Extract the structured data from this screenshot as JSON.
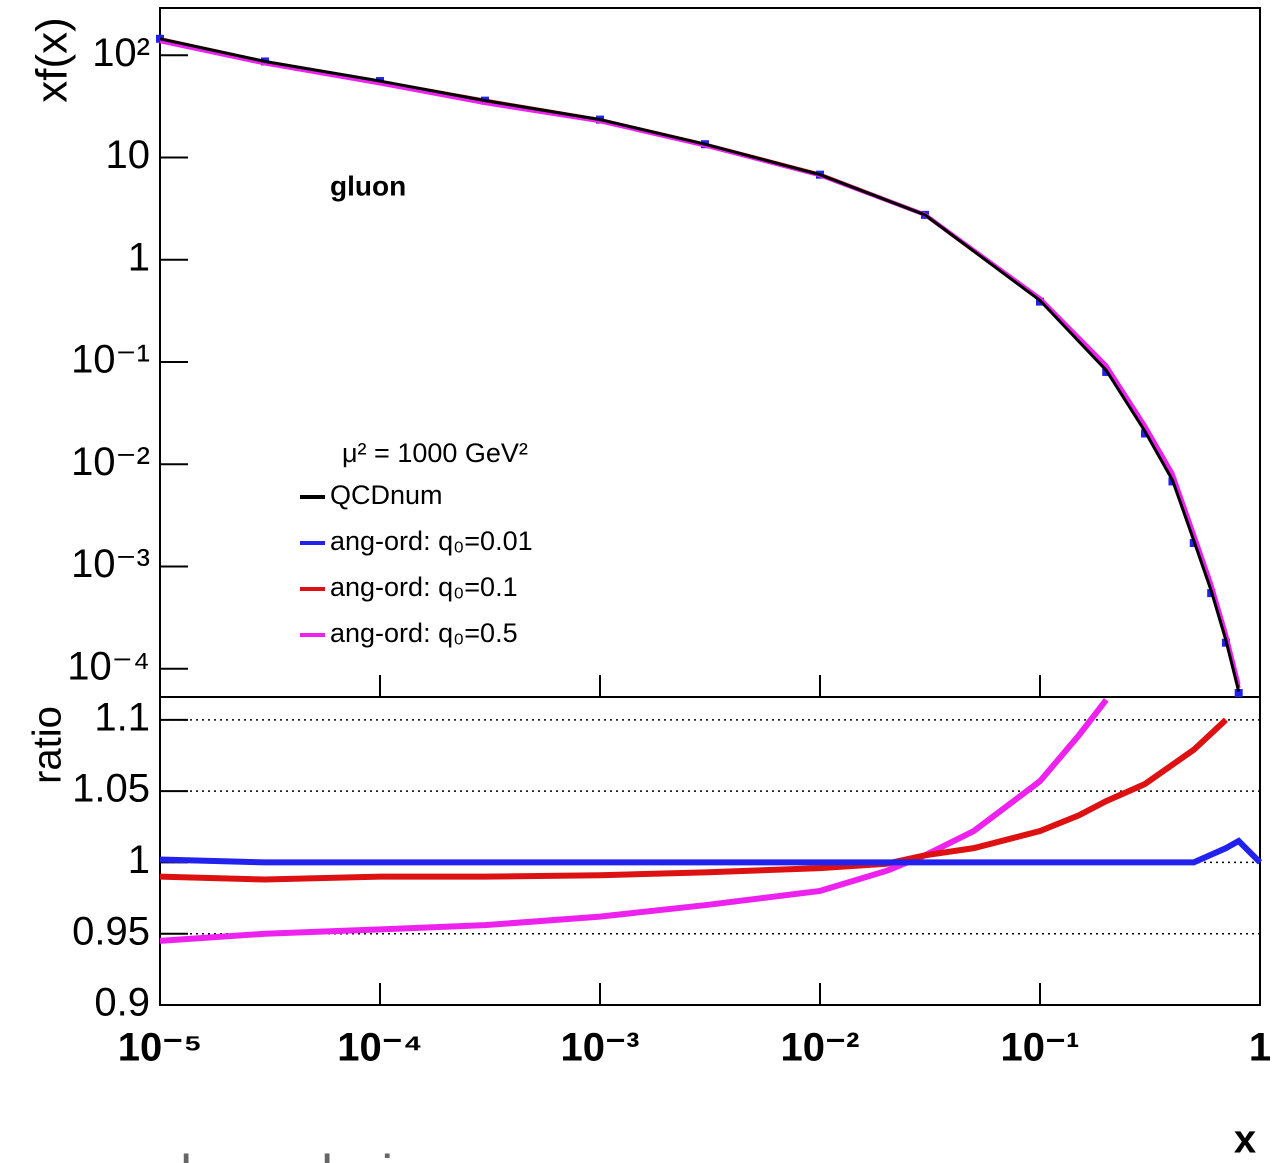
{
  "chart_data": [
    {
      "type": "line",
      "ylabel": "xf(x)",
      "annotation": "gluon",
      "legend_title": "μ² = 1000 GeV²",
      "log_x": true,
      "log_y": true,
      "xlim": [
        1e-05,
        1
      ],
      "ylim": [
        5.3e-05,
        290
      ],
      "yticks": [
        {
          "value": 100,
          "label": "10²"
        },
        10,
        1,
        {
          "value": 0.1,
          "label": "10⁻¹"
        },
        {
          "value": 0.01,
          "label": "10⁻²"
        },
        {
          "value": 0.001,
          "label": "10⁻³"
        },
        {
          "value": 0.0001,
          "label": "10⁻⁴"
        }
      ],
      "x": [
        1e-05,
        3e-05,
        0.0001,
        0.0003,
        0.001,
        0.003,
        0.01,
        0.03,
        0.1,
        0.2,
        0.3,
        0.4,
        0.5,
        0.6,
        0.7,
        0.8
      ],
      "series": [
        {
          "name": "QCDnum",
          "color": "#000000",
          "values": [
            145,
            87,
            56,
            36,
            23.5,
            13.5,
            6.8,
            2.75,
            0.4,
            0.083,
            0.021,
            0.007,
            0.0018,
            0.00058,
            0.00019,
            6e-05
          ]
        },
        {
          "name": "ang-ord: q₀=0.01",
          "color": "#2222ee",
          "values": [
            145,
            87,
            56,
            36,
            23.5,
            13.5,
            6.8,
            2.75,
            0.39,
            0.08,
            0.02,
            0.0068,
            0.0017,
            0.00055,
            0.00018,
            5.8e-05
          ]
        },
        {
          "name": "ang-ord: q₀=0.1",
          "color": "#dd1111",
          "values": [
            144,
            86,
            55,
            36,
            23.3,
            13.4,
            6.8,
            2.76,
            0.41,
            0.087,
            0.022,
            0.0075,
            0.0019,
            0.00062,
            0.0002,
            6.5e-05
          ]
        },
        {
          "name": "ang-ord: q₀=0.5",
          "color": "#ee22ee",
          "values": [
            137,
            83,
            53,
            34,
            22.6,
            13.1,
            6.7,
            2.76,
            0.42,
            0.093,
            0.024,
            0.0082,
            0.0021,
            0.00068,
            0.00022,
            7e-05
          ]
        }
      ]
    },
    {
      "type": "line",
      "ylabel": "ratio",
      "xlabel": "x",
      "log_x": true,
      "xlim": [
        1e-05,
        1
      ],
      "ylim": [
        0.9,
        1.116
      ],
      "grid": "dotted",
      "xticks": [
        {
          "value": 1e-05,
          "label": "10⁻⁵"
        },
        {
          "value": 0.0001,
          "label": "10⁻⁴"
        },
        {
          "value": 0.001,
          "label": "10⁻³"
        },
        {
          "value": 0.01,
          "label": "10⁻²"
        },
        {
          "value": 0.1,
          "label": "10⁻¹"
        },
        1
      ],
      "yticks": [
        0.9,
        0.95,
        1,
        1.05,
        1.1
      ],
      "x": [
        1e-05,
        3e-05,
        0.0001,
        0.0003,
        0.001,
        0.003,
        0.01,
        0.02,
        0.03,
        0.05,
        0.1,
        0.15,
        0.2,
        0.3,
        0.5,
        0.7,
        0.8,
        1
      ],
      "series": [
        {
          "color": "#2222ee",
          "values": [
            1.002,
            1.0,
            1.0,
            1.0,
            1.0,
            1.0,
            1.0,
            1.0,
            1.0,
            1.0,
            1.0,
            1.0,
            1.0,
            1.0,
            1.0,
            1.01,
            1.015,
            1.0
          ]
        },
        {
          "color": "#dd1111",
          "values": [
            0.99,
            0.988,
            0.99,
            0.99,
            0.991,
            0.993,
            0.996,
            0.999,
            1.005,
            1.01,
            1.022,
            1.033,
            1.043,
            1.055,
            1.079,
            1.1,
            null,
            null
          ]
        },
        {
          "color": "#ee22ee",
          "values": [
            0.945,
            0.95,
            0.953,
            0.956,
            0.962,
            0.97,
            0.98,
            0.994,
            1.005,
            1.022,
            1.057,
            1.089,
            1.114,
            null,
            null,
            null,
            null,
            null
          ]
        }
      ]
    }
  ],
  "footer_text": "angular ordering:"
}
